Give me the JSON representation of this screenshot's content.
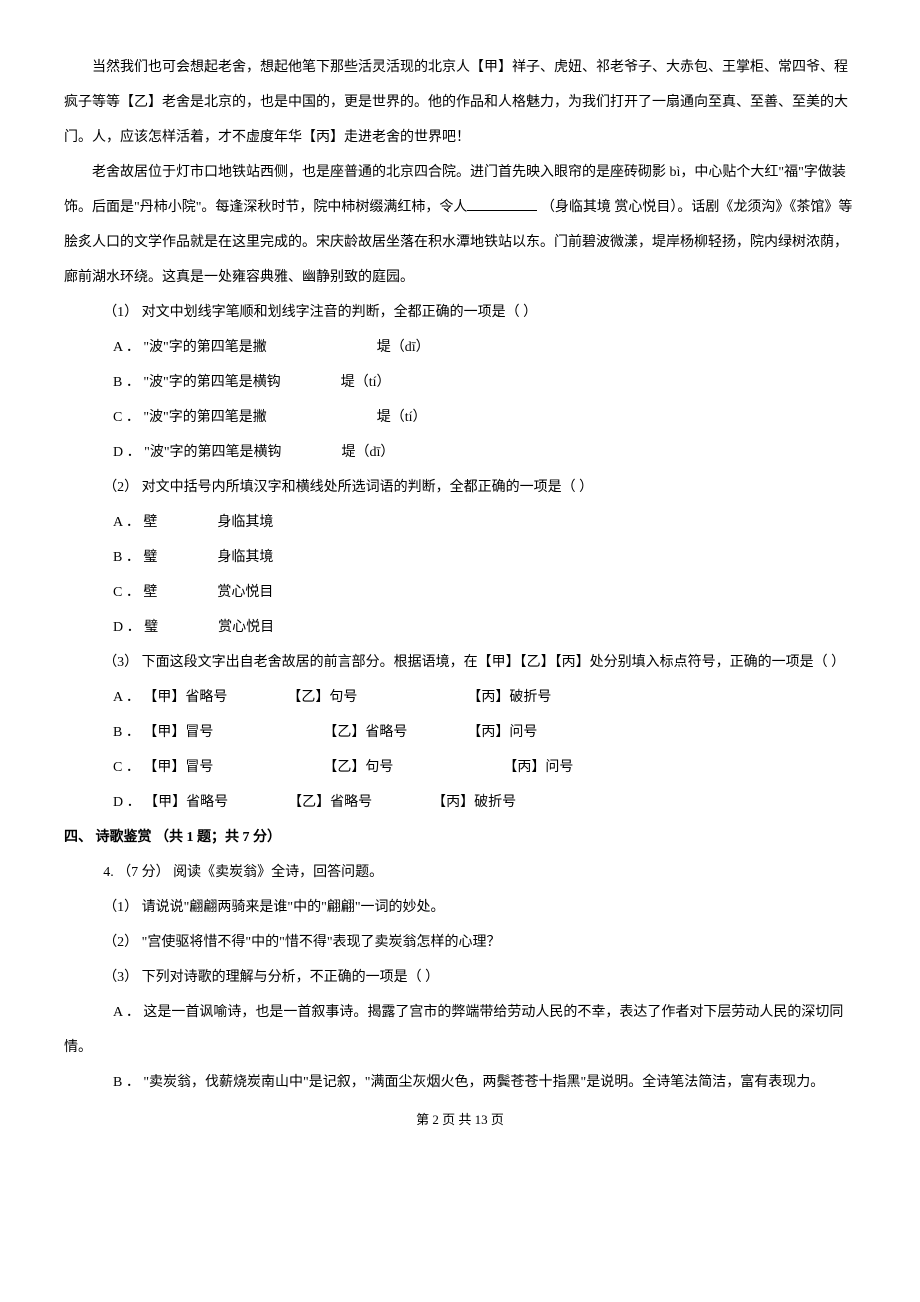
{
  "passage": {
    "p1": "当然我们也可会想起老舍，想起他笔下那些活灵活现的北京人【甲】祥子、虎妞、祁老爷子、大赤包、王掌柜、常四爷、程疯子等等【乙】老舍是北京的，也是中国的，更是世界的。他的作品和人格魅力，为我们打开了一扇通向至真、至善、至美的大门。人，应该怎样活着，才不虚度年华【丙】走进老舍的世界吧！",
    "p2_a": "老舍故居位于灯市口地铁站西侧，也是座普通的北京四合院。进门首先映入眼帘的是座砖砌影 bì，中心贴个大红\"福\"字做装饰。后面是\"丹柿小院\"。每逢深秋时节，院中柿树缀满红柿，令人",
    "p2_b": "（身临其境    赏心悦目）。话剧《龙须沟》《茶馆》等脍炙人口的文学作品就是在这里完成的。宋庆龄故居坐落在积水潭地铁站以东。门前碧波微漾，堤岸杨柳轻扬，院内绿树浓荫，廊前湖水环绕。这真是一处雍容典雅、幽静别致的庭园。"
  },
  "q1": {
    "stem": "（1） 对文中划线字笔顺和划线字注音的判断，全都正确的一项是（    ）",
    "A_left": "A ． \"波\"字的第四笔是撇",
    "A_right": "堤（dī）",
    "B_left": "B ． \"波\"字的第四笔是横钩",
    "B_right": "堤（tí）",
    "C_left": "C ． \"波\"字的第四笔是撇",
    "C_right": "堤（tí）",
    "D_left": "D ． \"波\"字的第四笔是横钩",
    "D_right": "堤（dī）"
  },
  "q2": {
    "stem": "（2） 对文中括号内所填汉字和横线处所选词语的判断，全都正确的一项是（    ）",
    "A_l": "A ． 壁",
    "A_r": "身临其境",
    "B_l": "B ． 璧",
    "B_r": "身临其境",
    "C_l": "C ． 壁",
    "C_r": "赏心悦目",
    "D_l": "D ． 璧",
    "D_r": "赏心悦目"
  },
  "q3": {
    "stem": "（3） 下面这段文字出自老舍故居的前言部分。根据语境，在【甲】【乙】【丙】处分别填入标点符号，正确的一项是（    ）",
    "A1": "A ． 【甲】省略号",
    "A2": "【乙】句号",
    "A3": "【丙】破折号",
    "B1": "B ． 【甲】冒号",
    "B2": "【乙】省略号",
    "B3": "【丙】问号",
    "C1": "C ． 【甲】冒号",
    "C2": "【乙】句号",
    "C3": "【丙】问号",
    "D1": "D ． 【甲】省略号",
    "D2": "【乙】省略号",
    "D3": "【丙】破折号"
  },
  "section4": {
    "heading": "四、 诗歌鉴赏 （共 1 题；共 7 分）",
    "q4_stem": "4.  （7 分） 阅读《卖炭翁》全诗，回答问题。",
    "sq1": "（1） 请说说\"翩翩两骑来是谁\"中的\"翩翩\"一词的妙处。",
    "sq2": "（2） \"宫使驱将惜不得\"中的\"惜不得\"表现了卖炭翁怎样的心理？",
    "sq3": "（3） 下列对诗歌的理解与分析，不正确的一项是（    ）",
    "optA": "A ． 这是一首讽喻诗，也是一首叙事诗。揭露了宫市的弊端带给劳动人民的不幸，表达了作者对下层劳动人民的深切同情。",
    "optB": "B ． \"卖炭翁，伐薪烧炭南山中\"是记叙，\"满面尘灰烟火色，两鬓苍苍十指黑\"是说明。全诗笔法简洁，富有表现力。"
  },
  "footer": "第 2 页 共 13 页"
}
